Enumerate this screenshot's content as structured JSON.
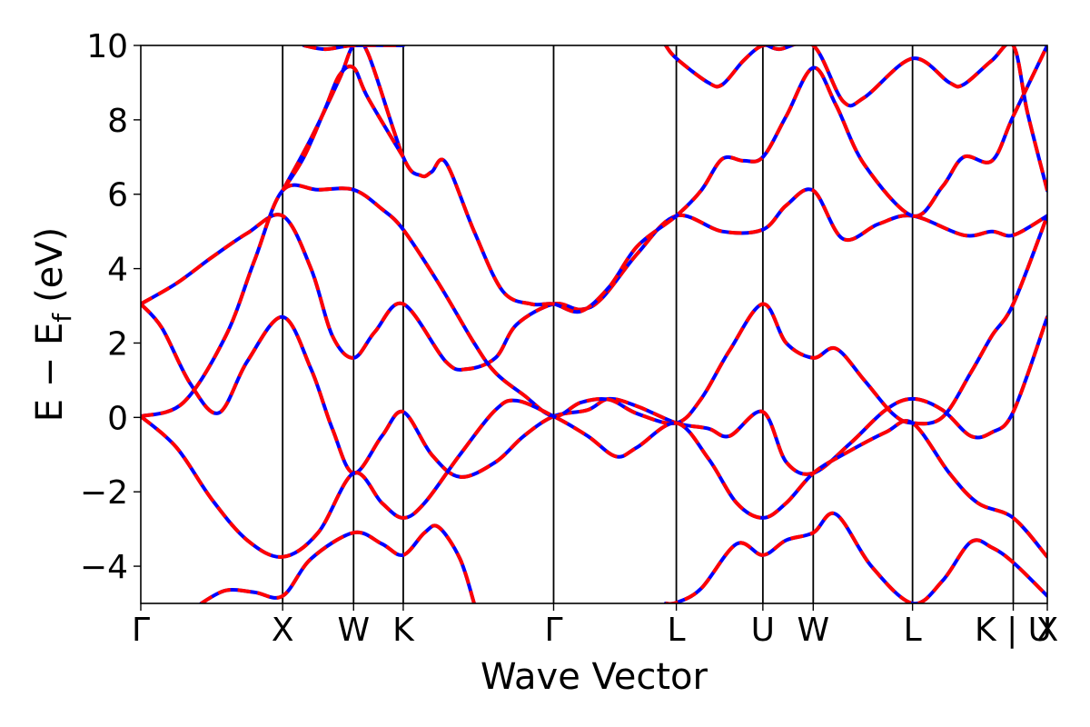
{
  "chart_data": {
    "type": "line",
    "xlabel": "Wave Vector",
    "ylabel_main": "E − E",
    "ylabel_sub": "f",
    "ylabel_unit": "(eV)",
    "ylim": [
      -5,
      10
    ],
    "xlim": [
      0,
      12.78
    ],
    "yticks": [
      -4,
      -2,
      0,
      2,
      4,
      6,
      8,
      10
    ],
    "ytick_labels": [
      "−4",
      "−2",
      "0",
      "2",
      "4",
      "6",
      "8",
      "10"
    ],
    "kpoints": [
      {
        "label": "Γ",
        "x": 0
      },
      {
        "label": "X",
        "x": 2.0
      },
      {
        "label": "W",
        "x": 3.0
      },
      {
        "label": "K",
        "x": 3.7
      },
      {
        "label": "Γ",
        "x": 5.82
      },
      {
        "label": "L",
        "x": 7.55
      },
      {
        "label": "U",
        "x": 8.77
      },
      {
        "label": "W",
        "x": 9.48
      },
      {
        "label": "L",
        "x": 10.88
      },
      {
        "label": "K | U",
        "x": 12.3
      },
      {
        "label": "X",
        "x": 12.78
      }
    ],
    "colors": {
      "series_a": "#0000ff",
      "series_b": "#ff0000",
      "frame": "#000000"
    },
    "series": [
      {
        "values": [
          [
            0,
            3.05
          ],
          [
            0.5,
            3.6
          ],
          [
            1.0,
            4.3
          ],
          [
            1.5,
            4.95
          ],
          [
            2.0,
            5.42
          ],
          [
            2.4,
            4.0
          ],
          [
            2.7,
            2.2
          ],
          [
            3.0,
            1.6
          ],
          [
            3.3,
            2.3
          ],
          [
            3.7,
            3.05
          ],
          [
            4.3,
            1.5
          ],
          [
            4.6,
            1.3
          ],
          [
            5.0,
            1.6
          ],
          [
            5.3,
            2.5
          ],
          [
            5.82,
            3.05
          ],
          [
            6.2,
            2.9
          ],
          [
            6.5,
            3.2
          ],
          [
            7.0,
            4.4
          ],
          [
            7.55,
            5.42
          ],
          [
            8.2,
            5.0
          ],
          [
            8.77,
            5.05
          ],
          [
            9.1,
            5.7
          ],
          [
            9.48,
            6.1
          ],
          [
            9.9,
            4.8
          ],
          [
            10.4,
            5.2
          ],
          [
            10.88,
            5.42
          ],
          [
            11.6,
            4.9
          ],
          [
            12.0,
            5.0
          ],
          [
            12.3,
            4.9
          ],
          [
            12.78,
            5.42
          ]
        ]
      },
      {
        "values": [
          [
            0,
            3.05
          ],
          [
            0.3,
            2.4
          ],
          [
            0.7,
            0.9
          ],
          [
            1.1,
            0.12
          ],
          [
            1.5,
            1.5
          ],
          [
            2.0,
            2.7
          ],
          [
            2.4,
            1.3
          ],
          [
            2.7,
            -0.3
          ],
          [
            3.0,
            -1.5
          ],
          [
            3.4,
            -0.5
          ],
          [
            3.7,
            0.15
          ],
          [
            4.1,
            -1.0
          ],
          [
            4.5,
            -1.6
          ],
          [
            5.0,
            -1.2
          ],
          [
            5.4,
            -0.5
          ],
          [
            5.82,
            0.03
          ],
          [
            6.3,
            0.2
          ],
          [
            6.6,
            0.5
          ],
          [
            7.0,
            0.3
          ],
          [
            7.55,
            -0.15
          ],
          [
            8.0,
            -0.3
          ],
          [
            8.3,
            -0.5
          ],
          [
            8.77,
            0.15
          ],
          [
            9.1,
            -1.2
          ],
          [
            9.48,
            -1.5
          ],
          [
            10.0,
            -0.7
          ],
          [
            10.5,
            0.2
          ],
          [
            10.88,
            0.5
          ],
          [
            11.3,
            0.2
          ],
          [
            11.7,
            -0.5
          ],
          [
            12.0,
            -0.4
          ],
          [
            12.3,
            0.15
          ],
          [
            12.78,
            2.7
          ]
        ]
      },
      {
        "values": [
          [
            0,
            0.03
          ],
          [
            0.6,
            0.4
          ],
          [
            1.2,
            2.2
          ],
          [
            1.6,
            4.2
          ],
          [
            2.0,
            6.1
          ],
          [
            2.5,
            6.12
          ],
          [
            3.0,
            6.12
          ],
          [
            3.4,
            5.6
          ],
          [
            3.7,
            5.05
          ],
          [
            4.2,
            3.6
          ],
          [
            4.7,
            2.0
          ],
          [
            5.0,
            1.2
          ],
          [
            5.4,
            0.6
          ],
          [
            5.82,
            0.03
          ],
          [
            6.2,
            0.4
          ],
          [
            6.6,
            0.48
          ],
          [
            7.0,
            0.1
          ],
          [
            7.55,
            -0.15
          ],
          [
            7.9,
            0.5
          ],
          [
            8.3,
            1.8
          ],
          [
            8.77,
            3.05
          ],
          [
            9.1,
            2.0
          ],
          [
            9.48,
            1.6
          ],
          [
            9.8,
            1.85
          ],
          [
            10.2,
            1.0
          ],
          [
            10.6,
            0.1
          ],
          [
            10.88,
            -0.15
          ],
          [
            11.3,
            0.0
          ],
          [
            11.7,
            1.2
          ],
          [
            12.0,
            2.2
          ],
          [
            12.3,
            3.05
          ],
          [
            12.78,
            5.42
          ]
        ]
      },
      {
        "values": [
          [
            0,
            0.03
          ],
          [
            0.5,
            -0.8
          ],
          [
            1.0,
            -2.2
          ],
          [
            1.5,
            -3.3
          ],
          [
            2.0,
            -3.75
          ],
          [
            2.5,
            -3.1
          ],
          [
            3.0,
            -1.5
          ],
          [
            3.4,
            -2.3
          ],
          [
            3.7,
            -2.7
          ],
          [
            4.0,
            -2.3
          ],
          [
            4.5,
            -1.0
          ],
          [
            5.0,
            0.2
          ],
          [
            5.3,
            0.45
          ],
          [
            5.82,
            0.03
          ],
          [
            6.3,
            -0.5
          ],
          [
            6.7,
            -1.05
          ],
          [
            7.0,
            -0.8
          ],
          [
            7.55,
            -0.15
          ],
          [
            8.0,
            -1.1
          ],
          [
            8.4,
            -2.3
          ],
          [
            8.77,
            -2.7
          ],
          [
            9.1,
            -2.3
          ],
          [
            9.48,
            -1.5
          ],
          [
            9.9,
            -1.0
          ],
          [
            10.5,
            -0.4
          ],
          [
            10.88,
            -0.15
          ],
          [
            11.4,
            -1.5
          ],
          [
            11.8,
            -2.3
          ],
          [
            12.3,
            -2.7
          ],
          [
            12.78,
            -3.75
          ]
        ]
      },
      {
        "values": [
          [
            0.85,
            -5.0
          ],
          [
            1.2,
            -4.65
          ],
          [
            1.6,
            -4.7
          ],
          [
            2.0,
            -4.8
          ],
          [
            2.4,
            -3.8
          ],
          [
            3.0,
            -3.1
          ],
          [
            3.4,
            -3.4
          ],
          [
            3.7,
            -3.7
          ],
          [
            4.0,
            -3.1
          ],
          [
            4.2,
            -2.95
          ],
          [
            4.5,
            -3.8
          ],
          [
            4.7,
            -5.0
          ]
        ]
      },
      {
        "values": [
          [
            7.4,
            -5.0
          ],
          [
            7.55,
            -4.98
          ],
          [
            7.9,
            -4.6
          ],
          [
            8.4,
            -3.4
          ],
          [
            8.77,
            -3.7
          ],
          [
            9.1,
            -3.3
          ],
          [
            9.48,
            -3.1
          ],
          [
            9.8,
            -2.6
          ],
          [
            10.3,
            -4.0
          ],
          [
            10.88,
            -5.0
          ],
          [
            11.3,
            -4.4
          ],
          [
            11.7,
            -3.35
          ],
          [
            12.0,
            -3.5
          ],
          [
            12.3,
            -3.9
          ],
          [
            12.78,
            -4.8
          ]
        ]
      },
      {
        "values": [
          [
            2.0,
            6.1
          ],
          [
            2.4,
            7.5
          ],
          [
            2.8,
            9.1
          ],
          [
            3.0,
            10.0
          ],
          [
            3.2,
            9.8
          ],
          [
            3.7,
            7.0
          ],
          [
            3.95,
            6.5
          ],
          [
            4.1,
            6.6
          ],
          [
            4.3,
            6.85
          ],
          [
            4.7,
            5.0
          ],
          [
            5.1,
            3.4
          ],
          [
            5.5,
            3.05
          ],
          [
            5.82,
            3.05
          ],
          [
            6.2,
            2.85
          ],
          [
            6.6,
            3.5
          ],
          [
            7.0,
            4.6
          ],
          [
            7.55,
            5.42
          ],
          [
            7.9,
            6.1
          ],
          [
            8.2,
            6.95
          ],
          [
            8.5,
            6.9
          ],
          [
            8.77,
            7.0
          ],
          [
            9.1,
            8.1
          ],
          [
            9.48,
            9.4
          ],
          [
            9.8,
            8.4
          ],
          [
            10.2,
            6.8
          ],
          [
            10.88,
            5.42
          ],
          [
            11.3,
            6.2
          ],
          [
            11.6,
            7.0
          ],
          [
            12.0,
            6.9
          ],
          [
            12.3,
            8.1
          ],
          [
            12.78,
            10.0
          ]
        ]
      },
      {
        "values": [
          [
            2.0,
            6.1
          ],
          [
            2.3,
            7.0
          ],
          [
            2.6,
            8.3
          ],
          [
            2.8,
            9.2
          ],
          [
            3.0,
            9.4
          ],
          [
            3.2,
            8.6
          ],
          [
            3.7,
            7.0
          ]
        ]
      },
      {
        "values": [
          [
            2.3,
            10.0
          ],
          [
            2.6,
            9.9
          ],
          [
            3.0,
            10.0
          ],
          [
            3.7,
            10.0
          ]
        ]
      },
      {
        "values": [
          [
            7.4,
            10.0
          ],
          [
            7.55,
            9.65
          ],
          [
            8.0,
            9.0
          ],
          [
            8.2,
            8.95
          ],
          [
            8.5,
            9.6
          ],
          [
            8.77,
            10.0
          ],
          [
            9.0,
            9.9
          ],
          [
            9.48,
            10.0
          ],
          [
            9.9,
            8.5
          ],
          [
            10.2,
            8.6
          ],
          [
            10.88,
            9.65
          ],
          [
            11.4,
            9.0
          ],
          [
            11.6,
            8.95
          ],
          [
            12.0,
            9.6
          ],
          [
            12.3,
            10.0
          ],
          [
            12.5,
            8.2
          ],
          [
            12.78,
            6.1
          ]
        ]
      }
    ]
  }
}
